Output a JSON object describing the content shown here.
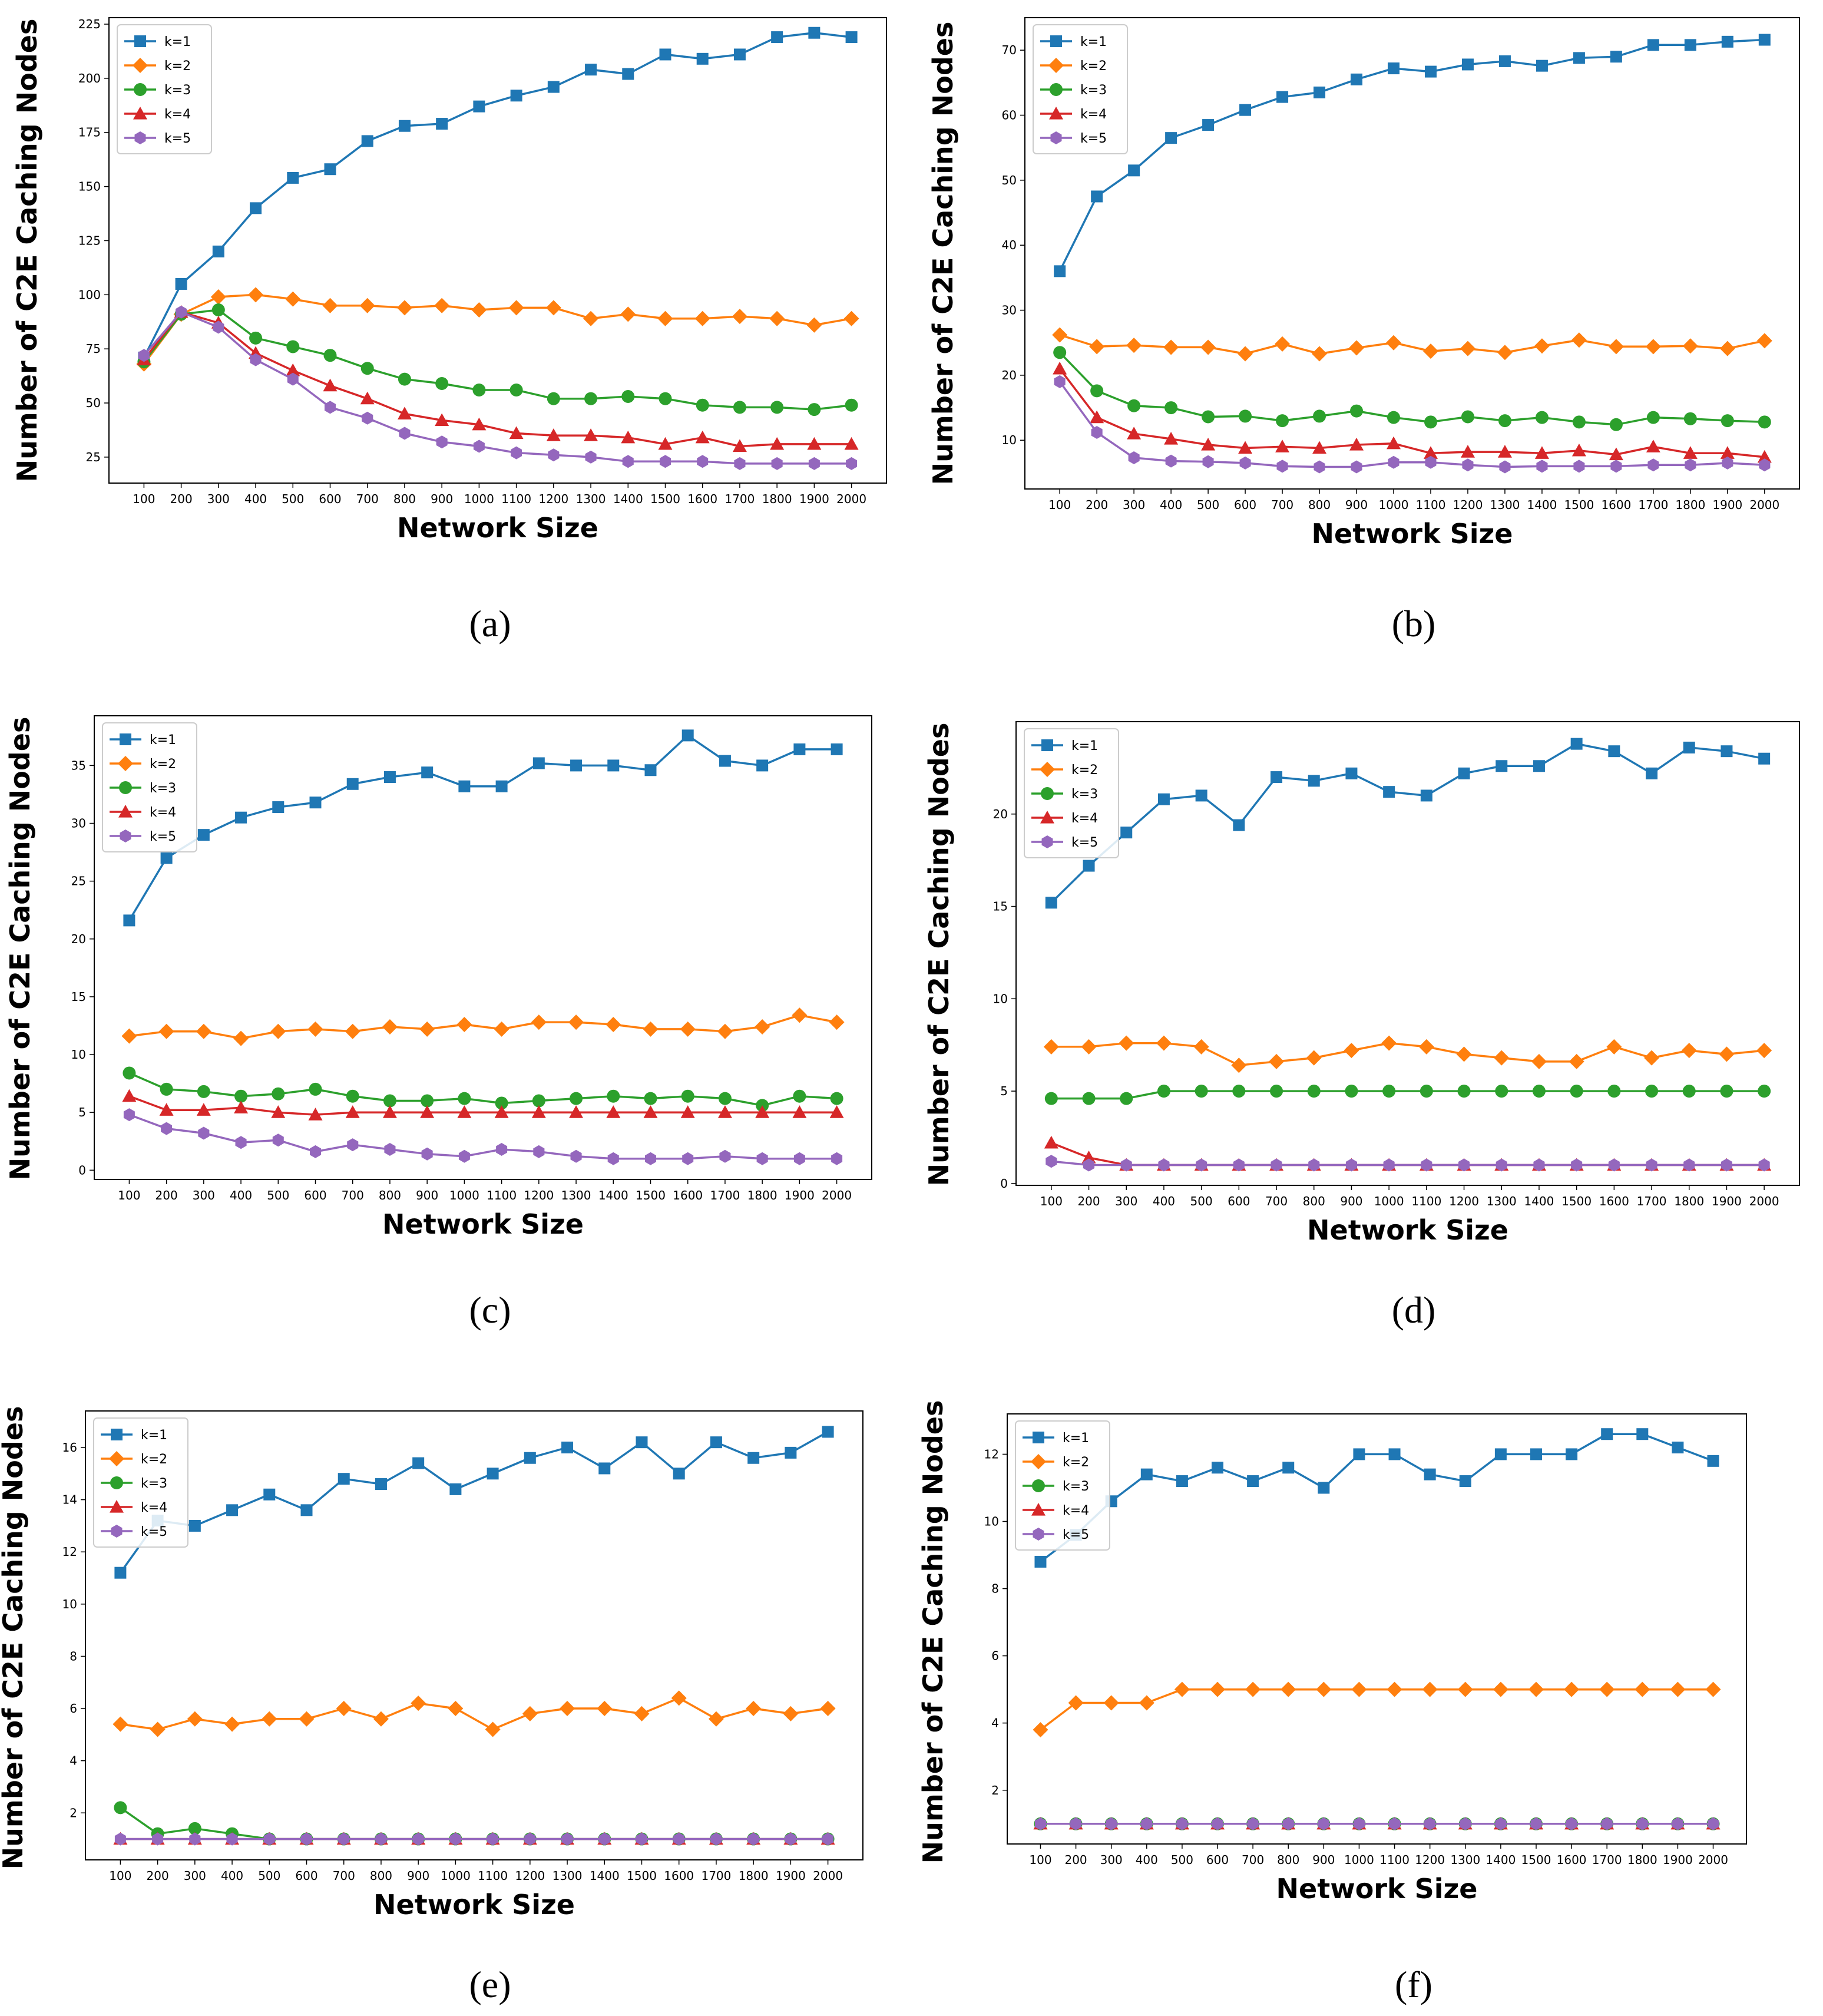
{
  "figure": {
    "x_label": "Network Size",
    "y_label": "Number of C2E Caching Nodes",
    "legend": [
      "k=1",
      "k=2",
      "k=3",
      "k=4",
      "k=5"
    ],
    "series_colors": [
      "#1f77b4",
      "#ff7f0e",
      "#2ca02c",
      "#d62728",
      "#9467bd"
    ],
    "series_markers": [
      "square",
      "diamond",
      "circle",
      "triangle",
      "hexagon"
    ]
  },
  "chart_data": [
    {
      "type": "line",
      "caption": "(a)",
      "xlabel": "Network Size",
      "ylabel": "Number of C2E Caching Nodes",
      "x": [
        100,
        200,
        300,
        400,
        500,
        600,
        700,
        800,
        900,
        1000,
        1100,
        1200,
        1300,
        1400,
        1500,
        1600,
        1700,
        1800,
        1900,
        2000
      ],
      "ylim": [
        13,
        228
      ],
      "yticks": [
        25,
        50,
        75,
        100,
        125,
        150,
        175,
        200,
        225
      ],
      "series": [
        {
          "name": "k=1",
          "values": [
            71,
            105,
            120,
            140,
            154,
            158,
            171,
            178,
            179,
            187,
            192,
            196,
            204,
            202,
            211,
            209,
            211,
            219,
            221,
            219
          ]
        },
        {
          "name": "k=2",
          "values": [
            68,
            91,
            99,
            100,
            98,
            95,
            95,
            94,
            95,
            93,
            94,
            94,
            89,
            91,
            89,
            89,
            90,
            89,
            86,
            89
          ]
        },
        {
          "name": "k=3",
          "values": [
            69,
            91,
            93,
            80,
            76,
            72,
            66,
            61,
            59,
            56,
            56,
            52,
            52,
            53,
            52,
            49,
            48,
            48,
            47,
            49
          ]
        },
        {
          "name": "k=4",
          "values": [
            70,
            92,
            87,
            73,
            65,
            58,
            52,
            45,
            42,
            40,
            36,
            35,
            35,
            34,
            31,
            34,
            30,
            31,
            31,
            31
          ]
        },
        {
          "name": "k=5",
          "values": [
            72,
            92,
            85,
            70,
            61,
            48,
            43,
            36,
            32,
            30,
            27,
            26,
            25,
            23,
            23,
            23,
            22,
            22,
            22,
            22
          ]
        }
      ]
    },
    {
      "type": "line",
      "caption": "(b)",
      "xlabel": "Network Size",
      "ylabel": "Number of C2E Caching Nodes",
      "x": [
        100,
        200,
        300,
        400,
        500,
        600,
        700,
        800,
        900,
        1000,
        1100,
        1200,
        1300,
        1400,
        1500,
        1600,
        1700,
        1800,
        1900,
        2000
      ],
      "ylim": [
        2.5,
        75
      ],
      "yticks": [
        10,
        20,
        30,
        40,
        50,
        60,
        70
      ],
      "series": [
        {
          "name": "k=1",
          "values": [
            36,
            47.5,
            51.5,
            56.5,
            58.5,
            60.8,
            62.8,
            63.5,
            65.5,
            67.2,
            66.7,
            67.8,
            68.3,
            67.6,
            68.8,
            69,
            70.8,
            70.8,
            71.3,
            71.6
          ]
        },
        {
          "name": "k=2",
          "values": [
            26.2,
            24.4,
            24.6,
            24.3,
            24.3,
            23.3,
            24.8,
            23.3,
            24.2,
            25,
            23.7,
            24.1,
            23.5,
            24.5,
            25.4,
            24.4,
            24.4,
            24.5,
            24.1,
            25.3
          ]
        },
        {
          "name": "k=3",
          "values": [
            23.5,
            17.6,
            15.3,
            15,
            13.6,
            13.7,
            13,
            13.7,
            14.5,
            13.5,
            12.8,
            13.6,
            13,
            13.5,
            12.8,
            12.4,
            13.5,
            13.3,
            13,
            12.8
          ]
        },
        {
          "name": "k=4",
          "values": [
            21,
            13.5,
            11,
            10.2,
            9.3,
            8.8,
            9,
            8.8,
            9.3,
            9.5,
            8,
            8.2,
            8.2,
            8,
            8.4,
            7.8,
            9,
            8,
            8,
            7.4
          ]
        },
        {
          "name": "k=5",
          "values": [
            19,
            11.2,
            7.3,
            6.8,
            6.7,
            6.5,
            6,
            5.9,
            5.9,
            6.6,
            6.6,
            6.2,
            5.9,
            6,
            6,
            6,
            6.2,
            6.2,
            6.5,
            6.2
          ]
        }
      ]
    },
    {
      "type": "line",
      "caption": "(c)",
      "xlabel": "Network Size",
      "ylabel": "Number of C2E Caching Nodes",
      "x": [
        100,
        200,
        300,
        400,
        500,
        600,
        700,
        800,
        900,
        1000,
        1100,
        1200,
        1300,
        1400,
        1500,
        1600,
        1700,
        1800,
        1900,
        2000
      ],
      "ylim": [
        -0.8,
        39.3
      ],
      "yticks": [
        0,
        5,
        10,
        15,
        20,
        25,
        30,
        35
      ],
      "series": [
        {
          "name": "k=1",
          "values": [
            21.6,
            27,
            29,
            30.5,
            31.4,
            31.8,
            33.4,
            34,
            34.4,
            33.2,
            33.2,
            35.2,
            35,
            35,
            34.6,
            37.6,
            35.4,
            35,
            36.4,
            36.4
          ]
        },
        {
          "name": "k=2",
          "values": [
            11.6,
            12,
            12,
            11.4,
            12,
            12.2,
            12,
            12.4,
            12.2,
            12.6,
            12.2,
            12.8,
            12.8,
            12.6,
            12.2,
            12.2,
            12,
            12.4,
            13.4,
            12.8
          ]
        },
        {
          "name": "k=3",
          "values": [
            8.4,
            7,
            6.8,
            6.4,
            6.6,
            7,
            6.4,
            6,
            6,
            6.2,
            5.8,
            6,
            6.2,
            6.4,
            6.2,
            6.4,
            6.2,
            5.6,
            6.4,
            6.2
          ]
        },
        {
          "name": "k=4",
          "values": [
            6.4,
            5.2,
            5.2,
            5.4,
            5,
            4.8,
            5,
            5,
            5,
            5,
            5,
            5,
            5,
            5,
            5,
            5,
            5,
            5,
            5,
            5
          ]
        },
        {
          "name": "k=5",
          "values": [
            4.8,
            3.6,
            3.2,
            2.4,
            2.6,
            1.6,
            2.2,
            1.8,
            1.4,
            1.2,
            1.8,
            1.6,
            1.2,
            1,
            1,
            1,
            1.2,
            1,
            1,
            1
          ]
        }
      ]
    },
    {
      "type": "line",
      "caption": "(d)",
      "xlabel": "Network Size",
      "ylabel": "Number of C2E Caching Nodes",
      "x": [
        100,
        200,
        300,
        400,
        500,
        600,
        700,
        800,
        900,
        1000,
        1100,
        1200,
        1300,
        1400,
        1500,
        1600,
        1700,
        1800,
        1900,
        2000
      ],
      "ylim": [
        -0.1,
        25
      ],
      "yticks": [
        0,
        5,
        10,
        15,
        20
      ],
      "series": [
        {
          "name": "k=1",
          "values": [
            15.2,
            17.2,
            19,
            20.8,
            21,
            19.4,
            22,
            21.8,
            22.2,
            21.2,
            21,
            22.2,
            22.6,
            22.6,
            23.8,
            23.4,
            22.2,
            23.6,
            23.4,
            23
          ]
        },
        {
          "name": "k=2",
          "values": [
            7.4,
            7.4,
            7.6,
            7.6,
            7.4,
            6.4,
            6.6,
            6.8,
            7.2,
            7.6,
            7.4,
            7,
            6.8,
            6.6,
            6.6,
            7.4,
            6.8,
            7.2,
            7,
            7.2
          ]
        },
        {
          "name": "k=3",
          "values": [
            4.6,
            4.6,
            4.6,
            5,
            5,
            5,
            5,
            5,
            5,
            5,
            5,
            5,
            5,
            5,
            5,
            5,
            5,
            5,
            5,
            5
          ]
        },
        {
          "name": "k=4",
          "values": [
            2.2,
            1.4,
            1,
            1,
            1,
            1,
            1,
            1,
            1,
            1,
            1,
            1,
            1,
            1,
            1,
            1,
            1,
            1,
            1,
            1
          ]
        },
        {
          "name": "k=5",
          "values": [
            1.2,
            1,
            1,
            1,
            1,
            1,
            1,
            1,
            1,
            1,
            1,
            1,
            1,
            1,
            1,
            1,
            1,
            1,
            1,
            1
          ]
        }
      ]
    },
    {
      "type": "line",
      "caption": "(e)",
      "xlabel": "Network Size",
      "ylabel": "Number of C2E Caching Nodes",
      "x": [
        100,
        200,
        300,
        400,
        500,
        600,
        700,
        800,
        900,
        1000,
        1100,
        1200,
        1300,
        1400,
        1500,
        1600,
        1700,
        1800,
        1900,
        2000
      ],
      "ylim": [
        0.2,
        17.4
      ],
      "yticks": [
        2,
        4,
        6,
        8,
        10,
        12,
        14,
        16
      ],
      "series": [
        {
          "name": "k=1",
          "values": [
            11.2,
            13.2,
            13,
            13.6,
            14.2,
            13.6,
            14.8,
            14.6,
            15.4,
            14.4,
            15,
            15.6,
            16,
            15.2,
            16.2,
            15,
            16.2,
            15.6,
            15.8,
            16.6
          ]
        },
        {
          "name": "k=2",
          "values": [
            5.4,
            5.2,
            5.6,
            5.4,
            5.6,
            5.6,
            6,
            5.6,
            6.2,
            6,
            5.2,
            5.8,
            6,
            6,
            5.8,
            6.4,
            5.6,
            6,
            5.8,
            6
          ]
        },
        {
          "name": "k=3",
          "values": [
            2.2,
            1.2,
            1.4,
            1.2,
            1,
            1,
            1,
            1,
            1,
            1,
            1,
            1,
            1,
            1,
            1,
            1,
            1,
            1,
            1,
            1
          ]
        },
        {
          "name": "k=4",
          "values": [
            1,
            1,
            1,
            1,
            1,
            1,
            1,
            1,
            1,
            1,
            1,
            1,
            1,
            1,
            1,
            1,
            1,
            1,
            1,
            1
          ]
        },
        {
          "name": "k=5",
          "values": [
            1,
            1,
            1,
            1,
            1,
            1,
            1,
            1,
            1,
            1,
            1,
            1,
            1,
            1,
            1,
            1,
            1,
            1,
            1,
            1
          ]
        }
      ]
    },
    {
      "type": "line",
      "caption": "(f)",
      "xlabel": "Network Size",
      "ylabel": "Number of C2E Caching Nodes",
      "x": [
        100,
        200,
        300,
        400,
        500,
        600,
        700,
        800,
        900,
        1000,
        1100,
        1200,
        1300,
        1400,
        1500,
        1600,
        1700,
        1800,
        1900,
        2000
      ],
      "ylim": [
        0.4,
        13.2
      ],
      "yticks": [
        2,
        4,
        6,
        8,
        10,
        12
      ],
      "series": [
        {
          "name": "k=1",
          "values": [
            8.8,
            9.6,
            10.6,
            11.4,
            11.2,
            11.6,
            11.2,
            11.6,
            11,
            12,
            12,
            11.4,
            11.2,
            12,
            12,
            12,
            12.6,
            12.6,
            12.2,
            11.8
          ]
        },
        {
          "name": "k=2",
          "values": [
            3.8,
            4.6,
            4.6,
            4.6,
            5,
            5,
            5,
            5,
            5,
            5,
            5,
            5,
            5,
            5,
            5,
            5,
            5,
            5,
            5,
            5
          ]
        },
        {
          "name": "k=3",
          "values": [
            1,
            1,
            1,
            1,
            1,
            1,
            1,
            1,
            1,
            1,
            1,
            1,
            1,
            1,
            1,
            1,
            1,
            1,
            1,
            1
          ]
        },
        {
          "name": "k=4",
          "values": [
            1,
            1,
            1,
            1,
            1,
            1,
            1,
            1,
            1,
            1,
            1,
            1,
            1,
            1,
            1,
            1,
            1,
            1,
            1,
            1
          ]
        },
        {
          "name": "k=5",
          "values": [
            1,
            1,
            1,
            1,
            1,
            1,
            1,
            1,
            1,
            1,
            1,
            1,
            1,
            1,
            1,
            1,
            1,
            1,
            1,
            1
          ]
        }
      ]
    }
  ]
}
